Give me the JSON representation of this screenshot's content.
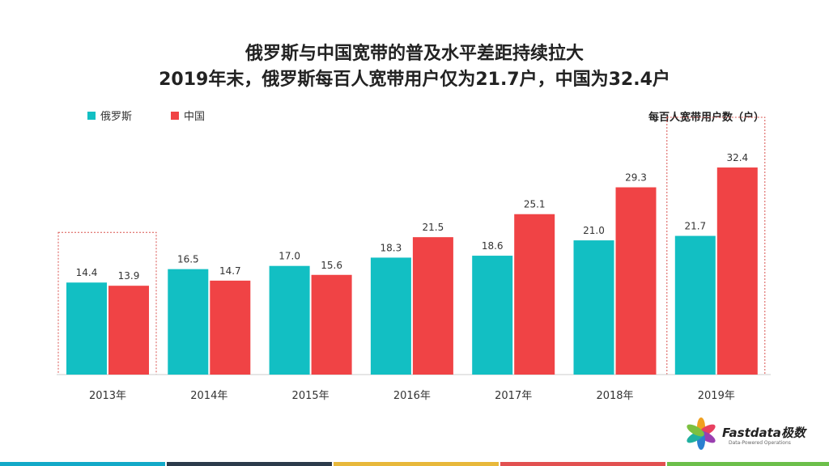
{
  "title_line1": "俄罗斯与中国宽带的普及水平差距持续拉大",
  "title_line2": "2019年末，俄罗斯每百人宽带用户仅为21.7户，中国为32.4户",
  "unit_label": "每百人宽带用户数（户）",
  "logo": {
    "name": "Fastdata极数",
    "tagline": "Data-Powered Operations"
  },
  "colors": {
    "russia": "#12BFC3",
    "china": "#F04345",
    "highlight_border": "#D9534F"
  },
  "chart_data": {
    "type": "bar",
    "categories": [
      "2013年",
      "2014年",
      "2015年",
      "2016年",
      "2017年",
      "2018年",
      "2019年"
    ],
    "series": [
      {
        "name": "俄罗斯",
        "values": [
          14.4,
          16.5,
          17.0,
          18.3,
          18.6,
          21.0,
          21.7
        ],
        "labels": [
          "14.4",
          "16.5",
          "17.0",
          "18.3",
          "18.6",
          "21.0",
          "21.7"
        ]
      },
      {
        "name": "中国",
        "values": [
          13.9,
          14.7,
          15.6,
          21.5,
          25.1,
          29.3,
          32.4
        ],
        "labels": [
          "13.9",
          "14.7",
          "15.6",
          "21.5",
          "25.1",
          "29.3",
          "32.4"
        ]
      }
    ],
    "ylim": [
      0,
      35
    ],
    "highlighted_categories": [
      "2013年",
      "2019年"
    ],
    "legend": "top-left",
    "grid": false
  }
}
